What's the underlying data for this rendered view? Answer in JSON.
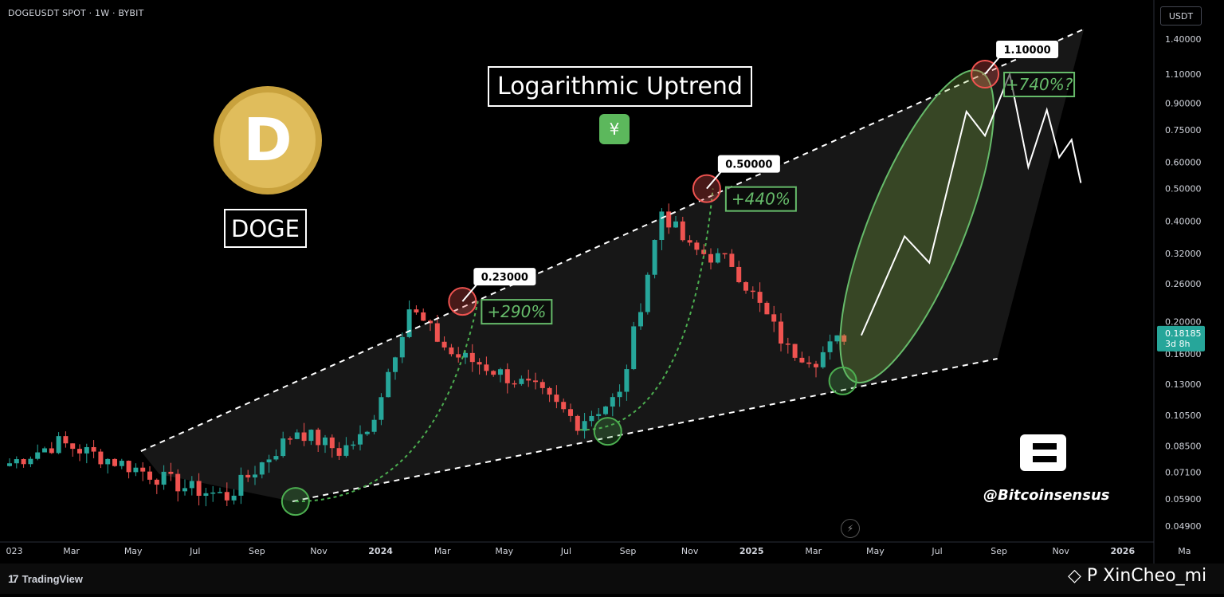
{
  "header": {
    "symbol_line": "DOGEUSDT SPOT · 1W · BYBIT",
    "currency": "USDT"
  },
  "annotations": {
    "title": "Logarithmic Uptrend",
    "coin": "DOGE",
    "handle": "@Bitcoinsensus",
    "peaks": [
      {
        "label": "0.23000",
        "gain": "+290%"
      },
      {
        "label": "0.50000",
        "gain": "+440%"
      },
      {
        "label": "1.10000",
        "gain": "+740%?"
      }
    ]
  },
  "footer": {
    "brand": "TradingView",
    "watermark": "P XinCheo_mi"
  },
  "colors": {
    "up": "#26a69a",
    "down": "#ef5350",
    "trendline": "#ffffff",
    "projection": "#8bc34a",
    "price_tag": "#26a69a"
  },
  "chart_data": {
    "type": "candlestick",
    "symbol": "DOGEUSDT",
    "interval": "1W",
    "exchange": "BYBIT",
    "y_scale": "log",
    "y_ticks": [
      1.4,
      1.1,
      0.9,
      0.75,
      0.6,
      0.5,
      0.4,
      0.32,
      0.26,
      0.2,
      0.16,
      0.13,
      0.105,
      0.085,
      0.071,
      0.059,
      0.049
    ],
    "y_tick_labels": [
      "1.40000",
      "1.10000",
      "0.90000",
      "0.75000",
      "0.60000",
      "0.50000",
      "0.40000",
      "0.32000",
      "0.26000",
      "0.20000",
      "0.16000",
      "0.13000",
      "0.10500",
      "0.08500",
      "0.07100",
      "0.05900",
      "0.04900"
    ],
    "x_tick_labels": [
      "023",
      "Mar",
      "May",
      "Jul",
      "Sep",
      "Nov",
      "2024",
      "Mar",
      "May",
      "Jul",
      "Sep",
      "Nov",
      "2025",
      "Mar",
      "May",
      "Jul",
      "Sep",
      "Nov",
      "2026",
      "Ma"
    ],
    "bold_x_ticks": [
      "2024",
      "2025",
      "2026"
    ],
    "current_price": "0.18185",
    "countdown": "3d 8h",
    "ohlc_segments": [
      {
        "weeks": 8,
        "from": 0.074,
        "to": 0.087
      },
      {
        "weeks": 10,
        "from": 0.087,
        "to": 0.074
      },
      {
        "weeks": 8,
        "from": 0.074,
        "to": 0.064
      },
      {
        "weeks": 6,
        "from": 0.064,
        "to": 0.06
      },
      {
        "weeks": 10,
        "from": 0.06,
        "to": 0.095
      },
      {
        "weeks": 6,
        "from": 0.095,
        "to": 0.082
      },
      {
        "weeks": 4,
        "from": 0.082,
        "to": 0.092
      },
      {
        "weeks": 6,
        "from": 0.092,
        "to": 0.22
      },
      {
        "weeks": 6,
        "from": 0.22,
        "to": 0.16
      },
      {
        "weeks": 4,
        "from": 0.16,
        "to": 0.15
      },
      {
        "weeks": 8,
        "from": 0.15,
        "to": 0.125
      },
      {
        "weeks": 6,
        "from": 0.125,
        "to": 0.1
      },
      {
        "weeks": 6,
        "from": 0.1,
        "to": 0.12
      },
      {
        "weeks": 6,
        "from": 0.12,
        "to": 0.43
      },
      {
        "weeks": 4,
        "from": 0.43,
        "to": 0.33
      },
      {
        "weeks": 6,
        "from": 0.33,
        "to": 0.3
      },
      {
        "weeks": 8,
        "from": 0.3,
        "to": 0.165
      },
      {
        "weeks": 4,
        "from": 0.165,
        "to": 0.155
      },
      {
        "weeks": 4,
        "from": 0.155,
        "to": 0.182
      }
    ],
    "trendlines": {
      "upper": [
        {
          "date": "2023-05",
          "price": 0.082
        },
        {
          "date": "2025-12",
          "price": 1.5
        }
      ],
      "lower": [
        {
          "date": "2023-10",
          "price": 0.058
        },
        {
          "date": "2025-09",
          "price": 0.155
        }
      ]
    },
    "projection_path": [
      0.182,
      0.36,
      0.3,
      0.85,
      0.72,
      1.1,
      0.58,
      0.86,
      0.62,
      0.7,
      0.52
    ]
  }
}
